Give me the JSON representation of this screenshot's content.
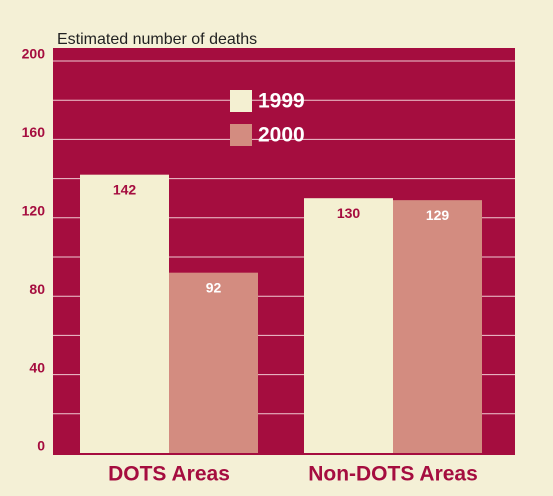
{
  "chart_data": {
    "type": "bar",
    "title": "Estimated number of deaths",
    "categories": [
      "DOTS Areas",
      "Non-DOTS Areas"
    ],
    "series": [
      {
        "name": "1999",
        "color": "#f4f0d2",
        "values": [
          142,
          130
        ]
      },
      {
        "name": "2000",
        "color": "#d38c80",
        "values": [
          92,
          129
        ]
      }
    ],
    "ylim": [
      0,
      200
    ],
    "yticks": [
      0,
      40,
      80,
      120,
      160,
      200
    ],
    "grid": true
  }
}
